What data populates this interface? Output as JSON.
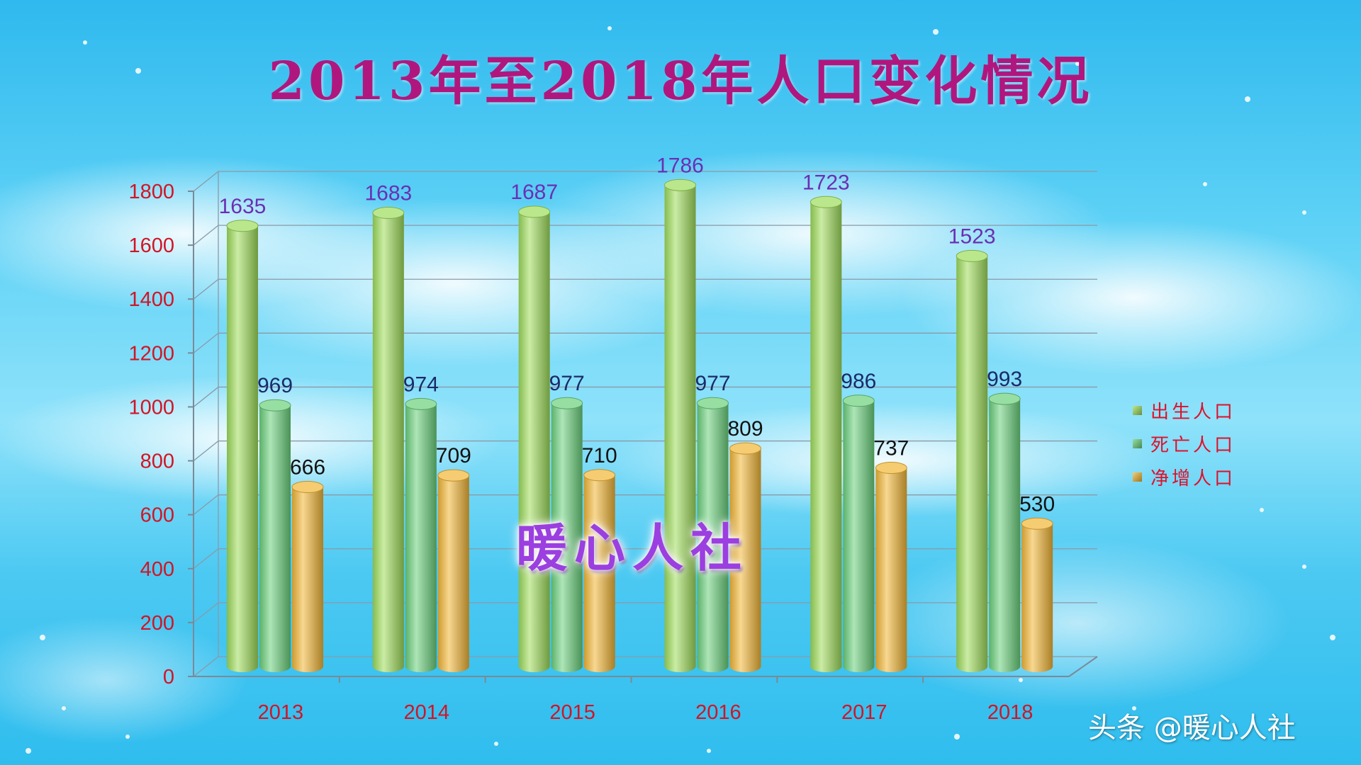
{
  "chart_data": {
    "type": "bar",
    "title": "2013年至2018年人口变化情况",
    "categories": [
      "2013",
      "2014",
      "2015",
      "2016",
      "2017",
      "2018"
    ],
    "series": [
      {
        "name": "出生人口",
        "values": [
          1635,
          1683,
          1687,
          1786,
          1723,
          1523
        ],
        "color": "#9edc5a"
      },
      {
        "name": "死亡人口",
        "values": [
          969,
          974,
          977,
          977,
          986,
          993
        ],
        "color": "#6ad07c"
      },
      {
        "name": "净增人口",
        "values": [
          666,
          709,
          710,
          809,
          737,
          530
        ],
        "color": "#f2b636"
      }
    ],
    "y_ticks": [
      "0",
      "200",
      "400",
      "600",
      "800",
      "1000",
      "1200",
      "1400",
      "1600",
      "1800"
    ],
    "ylim": [
      0,
      1800
    ],
    "grid": true,
    "legend_position": "right",
    "label_colors": [
      "#6b2fb3",
      "#1a2a6a",
      "#111111"
    ],
    "tick_color": "#d11526"
  },
  "watermarks": {
    "center": "暖心人社",
    "footer": "头条 @暖心人社"
  }
}
